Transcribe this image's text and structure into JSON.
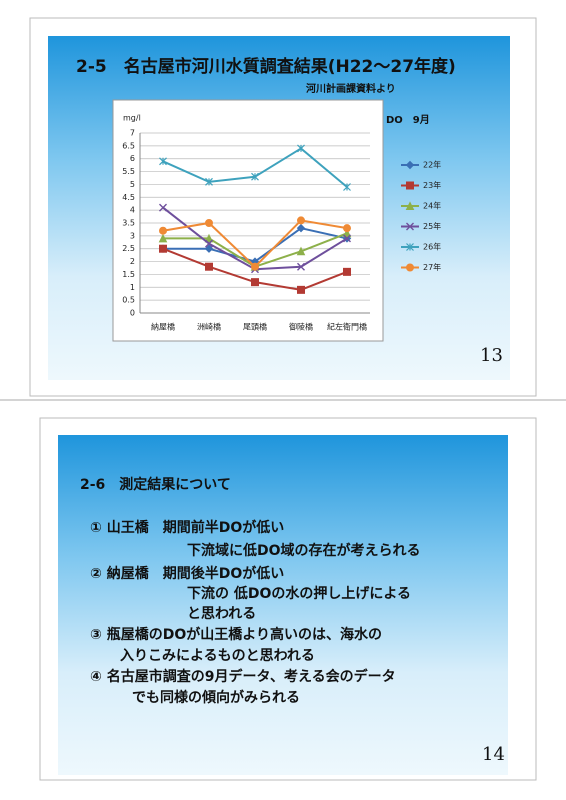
{
  "slide1": {
    "title": "2-5　名古屋市河川水質調査結果(H22～27年度)",
    "source": "河川計画課資料より",
    "page": "13"
  },
  "chart_data": {
    "type": "line",
    "title": "DO　9月",
    "y_label": "mg/l",
    "categories": [
      "納屋橋",
      "洲崎橋",
      "尾頭橋",
      "御陵橋",
      "紀左衛門橋"
    ],
    "series": [
      {
        "name": "22年",
        "color": "#3a6fb5",
        "marker": "diamond",
        "values": [
          2.5,
          2.5,
          2.0,
          3.3,
          2.9
        ]
      },
      {
        "name": "23年",
        "color": "#b33a33",
        "marker": "square",
        "values": [
          2.5,
          1.8,
          1.2,
          0.9,
          1.6
        ]
      },
      {
        "name": "24年",
        "color": "#8db04a",
        "marker": "triangle",
        "values": [
          2.9,
          2.9,
          1.8,
          2.4,
          3.1
        ]
      },
      {
        "name": "25年",
        "color": "#6e4f9c",
        "marker": "x",
        "values": [
          4.1,
          2.7,
          1.7,
          1.8,
          2.9
        ]
      },
      {
        "name": "26年",
        "color": "#3ea2bd",
        "marker": "star",
        "values": [
          5.9,
          5.1,
          5.3,
          6.4,
          4.9
        ]
      },
      {
        "name": "27年",
        "color": "#ef8a35",
        "marker": "circle",
        "values": [
          3.2,
          3.5,
          1.8,
          3.6,
          3.3
        ]
      }
    ],
    "ylim": [
      0,
      7
    ],
    "yticks": [
      0,
      0.5,
      1,
      1.5,
      2,
      2.5,
      3,
      3.5,
      4,
      4.5,
      5,
      5.5,
      6,
      6.5,
      7
    ],
    "grid": true,
    "legend": "right"
  },
  "slide2": {
    "title": "2-6　測定結果について",
    "lines": [
      "①  山王橋　期間前半DOが低い",
      "下流域に低DO域の存在が考えられる",
      "②  納屋橋　期間後半DOが低い",
      "下流の 低DOの水の押し上げによる",
      "と思われる",
      "③  瓶屋橋のDOが山王橋より高いのは、海水の",
      "入りこみによるものと思われる",
      "④  名古屋市調査の9月データ、考える会のデータ",
      "でも同様の傾向がみられる"
    ],
    "page": "14"
  }
}
